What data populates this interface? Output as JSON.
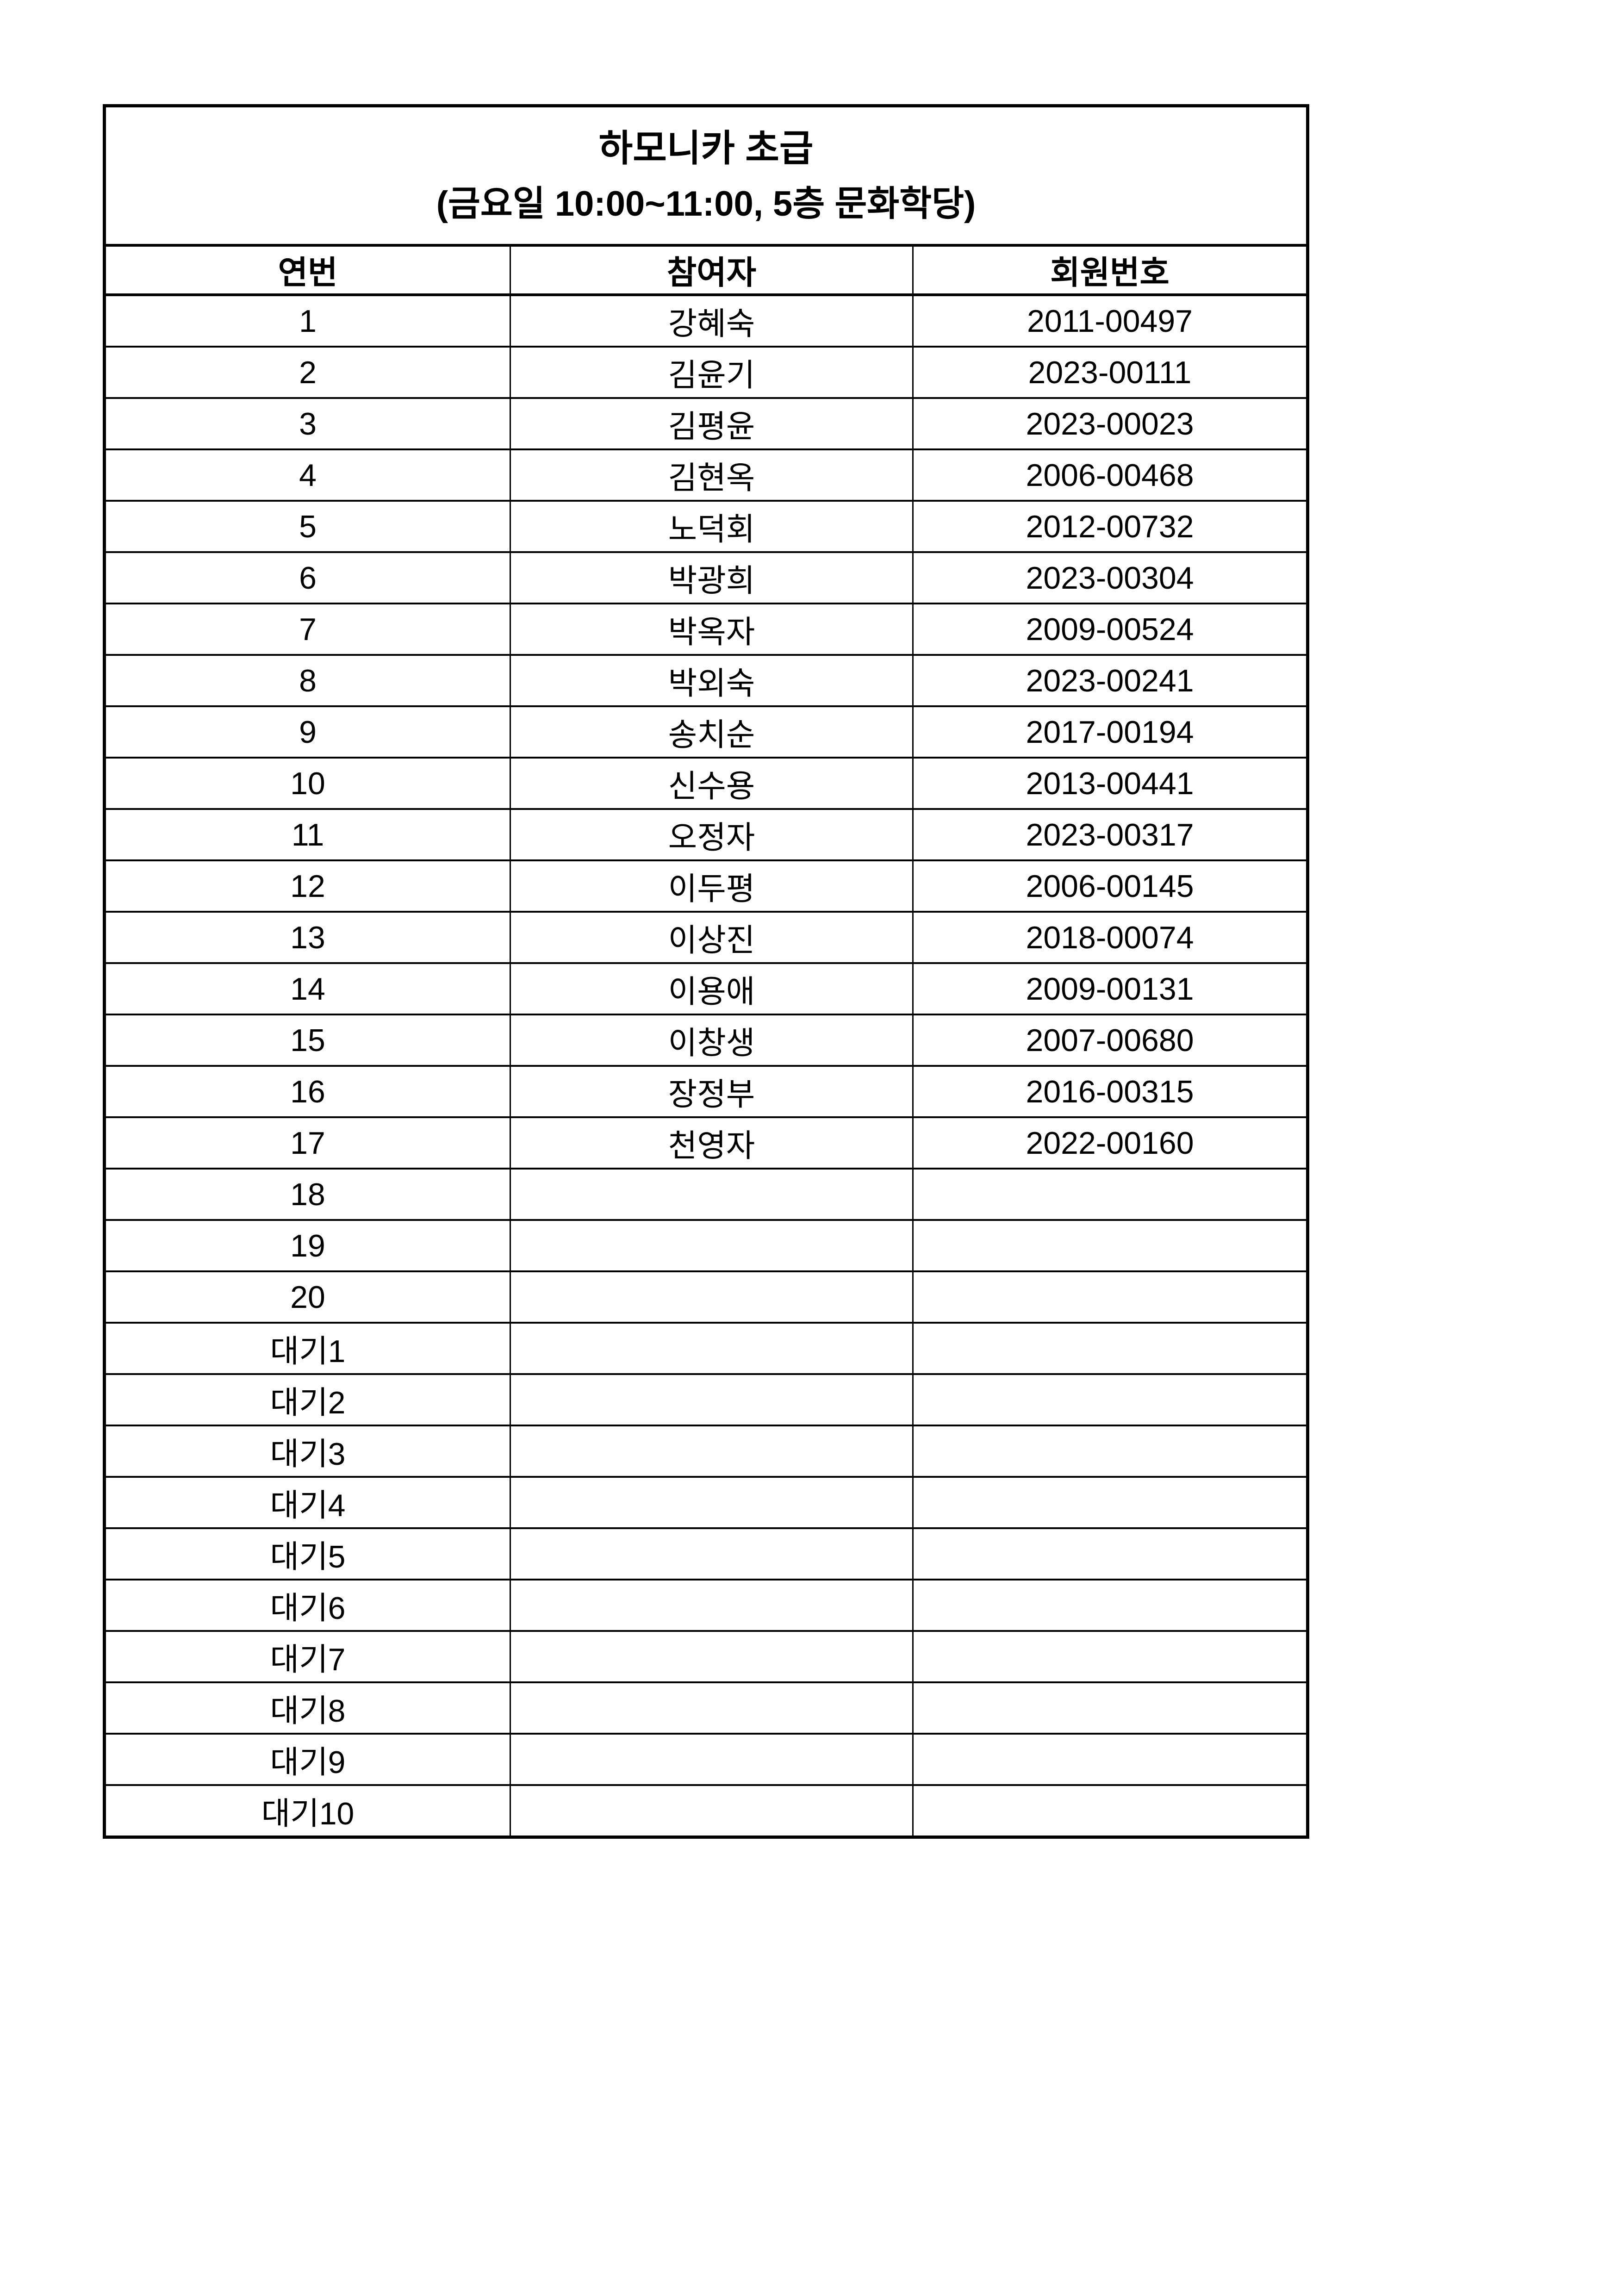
{
  "document": {
    "title": "하모니카 초급",
    "subtitle": "(금요일 10:00~11:00, 5층 문화학당)",
    "columns": [
      "연번",
      "참여자",
      "회원번호"
    ],
    "rows": [
      {
        "no": "1",
        "name": "강혜숙",
        "member_id": "2011-00497"
      },
      {
        "no": "2",
        "name": "김윤기",
        "member_id": "2023-00111"
      },
      {
        "no": "3",
        "name": "김평윤",
        "member_id": "2023-00023"
      },
      {
        "no": "4",
        "name": "김현옥",
        "member_id": "2006-00468"
      },
      {
        "no": "5",
        "name": "노덕회",
        "member_id": "2012-00732"
      },
      {
        "no": "6",
        "name": "박광희",
        "member_id": "2023-00304"
      },
      {
        "no": "7",
        "name": "박옥자",
        "member_id": "2009-00524"
      },
      {
        "no": "8",
        "name": "박외숙",
        "member_id": "2023-00241"
      },
      {
        "no": "9",
        "name": "송치순",
        "member_id": "2017-00194"
      },
      {
        "no": "10",
        "name": "신수용",
        "member_id": "2013-00441"
      },
      {
        "no": "11",
        "name": "오정자",
        "member_id": "2023-00317"
      },
      {
        "no": "12",
        "name": "이두평",
        "member_id": "2006-00145"
      },
      {
        "no": "13",
        "name": "이상진",
        "member_id": "2018-00074"
      },
      {
        "no": "14",
        "name": "이용애",
        "member_id": "2009-00131"
      },
      {
        "no": "15",
        "name": "이창생",
        "member_id": "2007-00680"
      },
      {
        "no": "16",
        "name": "장정부",
        "member_id": "2016-00315"
      },
      {
        "no": "17",
        "name": "천영자",
        "member_id": "2022-00160"
      },
      {
        "no": "18",
        "name": "",
        "member_id": ""
      },
      {
        "no": "19",
        "name": "",
        "member_id": ""
      },
      {
        "no": "20",
        "name": "",
        "member_id": ""
      },
      {
        "no": "대기1",
        "name": "",
        "member_id": ""
      },
      {
        "no": "대기2",
        "name": "",
        "member_id": ""
      },
      {
        "no": "대기3",
        "name": "",
        "member_id": ""
      },
      {
        "no": "대기4",
        "name": "",
        "member_id": ""
      },
      {
        "no": "대기5",
        "name": "",
        "member_id": ""
      },
      {
        "no": "대기6",
        "name": "",
        "member_id": ""
      },
      {
        "no": "대기7",
        "name": "",
        "member_id": ""
      },
      {
        "no": "대기8",
        "name": "",
        "member_id": ""
      },
      {
        "no": "대기9",
        "name": "",
        "member_id": ""
      },
      {
        "no": "대기10",
        "name": "",
        "member_id": ""
      }
    ],
    "colors": {
      "background": "#ffffff",
      "border": "#000000",
      "text": "#000000"
    }
  }
}
